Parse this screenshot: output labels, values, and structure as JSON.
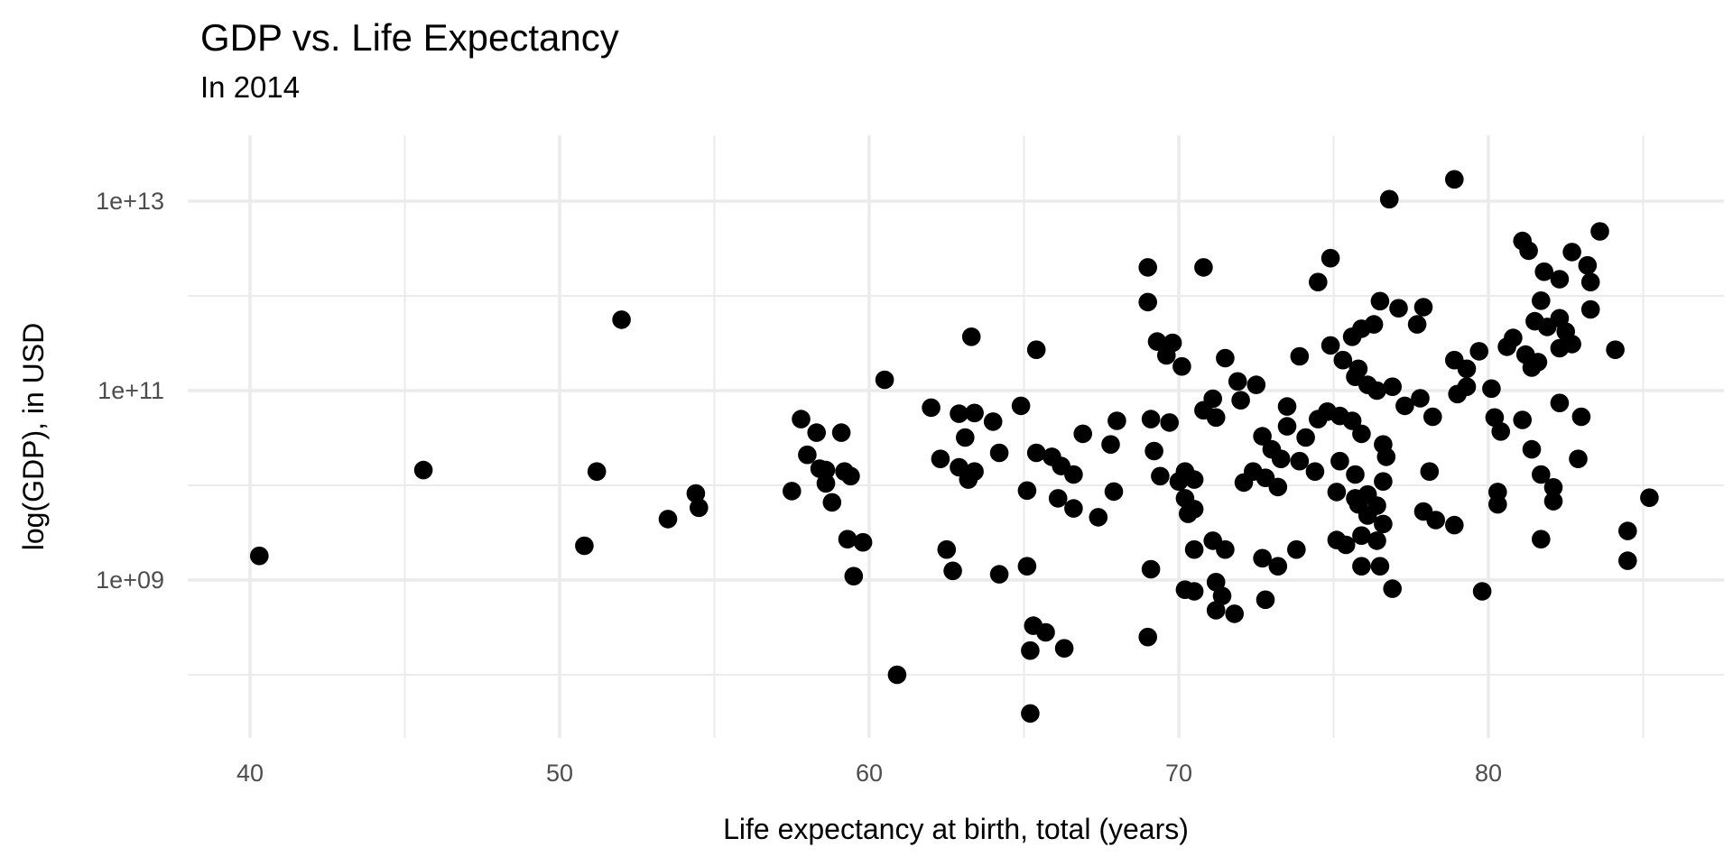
{
  "chart_data": {
    "type": "scatter",
    "title": "GDP vs. Life Expectancy",
    "subtitle": "In 2014",
    "xlabel": "Life expectancy at birth, total (years)",
    "ylabel": "log(GDP), in USD",
    "x_major_ticks": [
      40,
      50,
      60,
      70,
      80
    ],
    "x_minor_ticks": [
      45,
      55,
      65,
      75,
      85
    ],
    "y_major_tick_labels": [
      "1e+13",
      "1e+11",
      "1e+09"
    ],
    "y_major_ticks_log10": [
      13,
      11,
      9
    ],
    "y_minor_ticks_log10": [
      12,
      10,
      8
    ],
    "xlim": [
      38.0,
      87.8
    ],
    "ylim_log10": [
      7.33,
      13.7
    ],
    "grid": true,
    "legend": false,
    "background_color": "#FFFFFF",
    "gridline_color": "#EBEBEB",
    "axis_text_color": "#4D4D4D",
    "point_color": "#000000",
    "point_radius_px": 10.3,
    "points": [
      [
        40.3,
        1800000000.0
      ],
      [
        45.6,
        14500000000.0
      ],
      [
        50.8,
        2300000000.0
      ],
      [
        51.2,
        14000000000.0
      ],
      [
        52.0,
        560000000000.0
      ],
      [
        53.5,
        4400000000.0
      ],
      [
        54.4,
        8200000000.0
      ],
      [
        54.5,
        5800000000.0
      ],
      [
        57.5,
        8700000000.0
      ],
      [
        57.8,
        50000000000.0
      ],
      [
        58.0,
        21000000000.0
      ],
      [
        58.3,
        36000000000.0
      ],
      [
        58.4,
        15000000000.0
      ],
      [
        58.6,
        14500000000.0
      ],
      [
        58.6,
        10500000000.0
      ],
      [
        58.8,
        6600000000.0
      ],
      [
        59.1,
        36000000000.0
      ],
      [
        59.2,
        14000000000.0
      ],
      [
        59.4,
        12500000000.0
      ],
      [
        59.3,
        2700000000.0
      ],
      [
        59.8,
        2500000000.0
      ],
      [
        59.5,
        1100000000.0
      ],
      [
        60.5,
        130000000000.0
      ],
      [
        60.9,
        100000000.0
      ],
      [
        62.0,
        66000000000.0
      ],
      [
        62.3,
        19000000000.0
      ],
      [
        62.5,
        2100000000.0
      ],
      [
        62.7,
        1250000000.0
      ],
      [
        62.9,
        57000000000.0
      ],
      [
        62.9,
        15500000000.0
      ],
      [
        63.1,
        32000000000.0
      ],
      [
        63.2,
        11500000000.0
      ],
      [
        63.3,
        370000000000.0
      ],
      [
        63.4,
        58000000000.0
      ],
      [
        63.4,
        14000000000.0
      ],
      [
        64.0,
        47000000000.0
      ],
      [
        64.2,
        22000000000.0
      ],
      [
        64.2,
        1150000000.0
      ],
      [
        64.9,
        69000000000.0
      ],
      [
        65.1,
        8800000000.0
      ],
      [
        65.1,
        1400000000.0
      ],
      [
        65.2,
        180000000.0
      ],
      [
        65.2,
        39000000.0
      ],
      [
        65.3,
        330000000.0
      ],
      [
        65.4,
        270000000000.0
      ],
      [
        65.4,
        22000000000.0
      ],
      [
        65.7,
        280000000.0
      ],
      [
        65.9,
        20000000000.0
      ],
      [
        66.1,
        7300000000.0
      ],
      [
        66.2,
        16000000000.0
      ],
      [
        66.3,
        190000000.0
      ],
      [
        66.6,
        13000000000.0
      ],
      [
        66.6,
        5700000000.0
      ],
      [
        66.9,
        35000000000.0
      ],
      [
        67.4,
        4600000000.0
      ],
      [
        67.8,
        27000000000.0
      ],
      [
        67.9,
        8600000000.0
      ],
      [
        68.0,
        48000000000.0
      ],
      [
        69.0,
        2000000000000.0
      ],
      [
        69.0,
        860000000000.0
      ],
      [
        69.0,
        250000000.0
      ],
      [
        69.1,
        50000000000.0
      ],
      [
        69.1,
        1300000000.0
      ],
      [
        69.2,
        23000000000.0
      ],
      [
        69.3,
        330000000000.0
      ],
      [
        69.4,
        12500000000.0
      ],
      [
        69.6,
        235000000000.0
      ],
      [
        69.7,
        46000000000.0
      ],
      [
        69.8,
        320000000000.0
      ],
      [
        70.0,
        11000000000.0
      ],
      [
        70.1,
        180000000000.0
      ],
      [
        70.2,
        14000000000.0
      ],
      [
        70.2,
        7300000000.0
      ],
      [
        70.2,
        790000000.0
      ],
      [
        70.3,
        5000000000.0
      ],
      [
        70.5,
        11500000000.0
      ],
      [
        70.5,
        5600000000.0
      ],
      [
        70.5,
        2100000000.0
      ],
      [
        70.5,
        760000000.0
      ],
      [
        70.8,
        2000000000000.0
      ],
      [
        70.8,
        62000000000.0
      ],
      [
        71.1,
        82000000000.0
      ],
      [
        71.1,
        2600000000.0
      ],
      [
        71.2,
        52000000000.0
      ],
      [
        71.2,
        950000000.0
      ],
      [
        71.2,
        480000000.0
      ],
      [
        71.4,
        680000000.0
      ],
      [
        71.5,
        220000000000.0
      ],
      [
        71.5,
        2100000000.0
      ],
      [
        71.8,
        440000000.0
      ],
      [
        71.9,
        125000000000.0
      ],
      [
        72.0,
        79000000000.0
      ],
      [
        72.1,
        10700000000.0
      ],
      [
        72.4,
        14000000000.0
      ],
      [
        72.5,
        115000000000.0
      ],
      [
        72.7,
        33000000000.0
      ],
      [
        72.7,
        1700000000.0
      ],
      [
        72.8,
        12000000000.0
      ],
      [
        72.8,
        620000000.0
      ],
      [
        73.0,
        24000000000.0
      ],
      [
        73.2,
        9600000000.0
      ],
      [
        73.2,
        1400000000.0
      ],
      [
        73.3,
        19000000000.0
      ],
      [
        73.5,
        68000000000.0
      ],
      [
        73.5,
        42000000000.0
      ],
      [
        73.8,
        2100000000.0
      ],
      [
        73.9,
        230000000000.0
      ],
      [
        73.9,
        18000000000.0
      ],
      [
        74.1,
        32000000000.0
      ],
      [
        74.4,
        14000000000.0
      ],
      [
        74.5,
        50000000000.0
      ],
      [
        74.5,
        1400000000000.0
      ],
      [
        74.8,
        60000000000.0
      ],
      [
        74.9,
        2500000000000.0
      ],
      [
        74.9,
        300000000000.0
      ],
      [
        75.1,
        2650000000.0
      ],
      [
        75.1,
        8500000000.0
      ],
      [
        75.2,
        54000000000.0
      ],
      [
        75.2,
        18000000000.0
      ],
      [
        75.3,
        210000000000.0
      ],
      [
        75.4,
        2350000000.0
      ],
      [
        75.6,
        48000000000.0
      ],
      [
        75.6,
        370000000000.0
      ],
      [
        75.7,
        140000000000.0
      ],
      [
        75.7,
        13000000000.0
      ],
      [
        75.7,
        7300000000.0
      ],
      [
        75.8,
        170000000000.0
      ],
      [
        75.8,
        6300000000.0
      ],
      [
        75.9,
        35000000000.0
      ],
      [
        75.9,
        450000000000.0
      ],
      [
        75.9,
        1400000000.0
      ],
      [
        75.9,
        2950000000.0
      ],
      [
        76.1,
        115000000000.0
      ],
      [
        76.1,
        8000000000.0
      ],
      [
        76.1,
        4800000000.0
      ],
      [
        76.3,
        500000000000.0
      ],
      [
        76.4,
        100000000000.0
      ],
      [
        76.4,
        6100000000.0
      ],
      [
        76.4,
        2600000000.0
      ],
      [
        76.5,
        880000000000.0
      ],
      [
        76.5,
        1400000000.0
      ],
      [
        76.6,
        27000000000.0
      ],
      [
        76.6,
        11000000000.0
      ],
      [
        76.6,
        3900000000.0
      ],
      [
        76.7,
        20000000000.0
      ],
      [
        76.8,
        10500000000000.0
      ],
      [
        76.9,
        110000000000.0
      ],
      [
        76.9,
        810000000.0
      ],
      [
        77.1,
        740000000000.0
      ],
      [
        77.3,
        69000000000.0
      ],
      [
        77.7,
        500000000000.0
      ],
      [
        77.8,
        83000000000.0
      ],
      [
        77.9,
        760000000000.0
      ],
      [
        77.9,
        5300000000.0
      ],
      [
        78.1,
        14000000000.0
      ],
      [
        78.2,
        53000000000.0
      ],
      [
        78.3,
        4300000000.0
      ],
      [
        78.9,
        17000000000000.0
      ],
      [
        78.9,
        210000000000.0
      ],
      [
        78.9,
        3800000000.0
      ],
      [
        79.0,
        92000000000.0
      ],
      [
        79.3,
        170000000000.0
      ],
      [
        79.3,
        110000000000.0
      ],
      [
        79.7,
        260000000000.0
      ],
      [
        79.8,
        760000000.0
      ],
      [
        80.1,
        105000000000.0
      ],
      [
        80.2,
        52000000000.0
      ],
      [
        80.3,
        8500000000.0
      ],
      [
        80.3,
        6300000000.0
      ],
      [
        80.4,
        37000000000.0
      ],
      [
        80.6,
        290000000000.0
      ],
      [
        80.8,
        360000000000.0
      ],
      [
        81.1,
        3800000000000.0
      ],
      [
        81.1,
        49000000000.0
      ],
      [
        81.2,
        240000000000.0
      ],
      [
        81.3,
        3000000000000.0
      ],
      [
        81.4,
        175000000000.0
      ],
      [
        81.4,
        24000000000.0
      ],
      [
        81.5,
        540000000000.0
      ],
      [
        81.6,
        200000000000.0
      ],
      [
        81.7,
        890000000000.0
      ],
      [
        81.7,
        13000000000.0
      ],
      [
        81.7,
        2700000000.0
      ],
      [
        81.8,
        1800000000000.0
      ],
      [
        81.9,
        470000000000.0
      ],
      [
        82.1,
        9500000000.0
      ],
      [
        82.1,
        6800000000.0
      ],
      [
        82.3,
        1500000000000.0
      ],
      [
        82.3,
        580000000000.0
      ],
      [
        82.3,
        280000000000.0
      ],
      [
        82.3,
        74000000000.0
      ],
      [
        82.5,
        420000000000.0
      ],
      [
        82.7,
        2900000000000.0
      ],
      [
        82.7,
        310000000000.0
      ],
      [
        82.9,
        19000000000.0
      ],
      [
        83.0,
        53000000000.0
      ],
      [
        83.2,
        2100000000000.0
      ],
      [
        83.3,
        1400000000000.0
      ],
      [
        83.3,
        720000000000.0
      ],
      [
        83.6,
        4800000000000.0
      ],
      [
        84.1,
        270000000000.0
      ],
      [
        84.5,
        3300000000.0
      ],
      [
        84.5,
        1600000000.0
      ],
      [
        85.2,
        7400000000.0
      ]
    ]
  }
}
